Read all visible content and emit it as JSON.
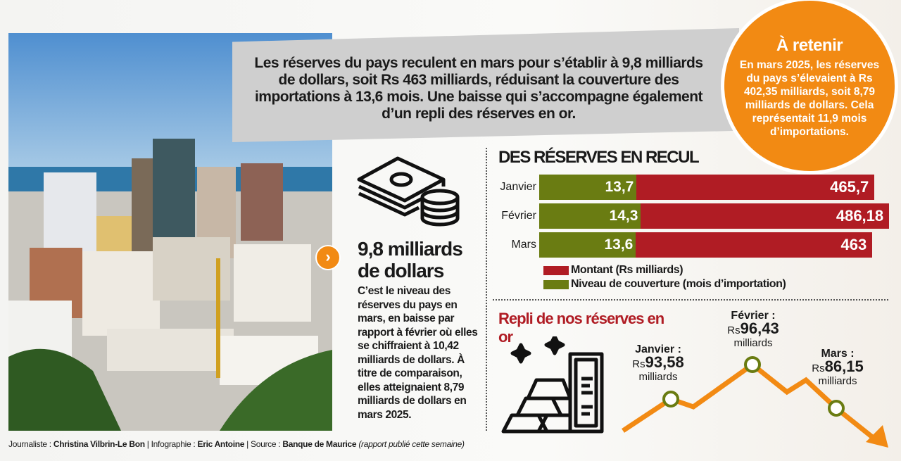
{
  "banner": {
    "text": "Les réserves du pays reculent en mars pour s’établir à 9,8 milliards de dollars, soit Rs 463 milliards, réduisant la couverture des importations à 13,6 mois. Une baisse qui s’accompagne également d’un repli des réserves en or."
  },
  "callout": {
    "title": "À retenir",
    "text": "En mars 2025, les réserves du pays s’élevaient à Rs 402,35 milliards, soit 8,79 milliards de dollars. Cela représentait 11,9 mois d’importations."
  },
  "highlight": {
    "value": "9,8 milliards de dollars",
    "text": "C’est le niveau des réserves du pays en mars, en baisse par rapport à février où elles se chiffraient à 10,42 milliards de dollars. À titre de comparaison, elles atteignaient 8,79 milliards de dollars en mars 2025.",
    "icon": "money-stack-icon"
  },
  "chart_data": [
    {
      "type": "bar",
      "title": "DES RÉSERVES EN RECUL",
      "categories": [
        "Janvier",
        "Février",
        "Mars"
      ],
      "series": [
        {
          "name": "Niveau de couverture (mois d’importation)",
          "values": [
            13.7,
            14.3,
            13.6
          ],
          "labels": [
            "13,7",
            "14,3",
            "13,6"
          ],
          "color": "#6a7c12"
        },
        {
          "name": "Montant (Rs milliards)",
          "values": [
            465.7,
            486.18,
            463
          ],
          "labels": [
            "465,7",
            "486,18",
            "463"
          ],
          "color": "#b01c24"
        }
      ],
      "orientation": "horizontal",
      "stacked": true
    },
    {
      "type": "line",
      "title": "Repli de nos réserves en or",
      "categories": [
        "Janvier",
        "Février",
        "Mars"
      ],
      "values": [
        93.58,
        96.43,
        86.15
      ],
      "labels": [
        {
          "month": "Janvier :",
          "prefix": "Rs",
          "value": "93,58",
          "unit": "milliards"
        },
        {
          "month": "Février :",
          "prefix": "Rs",
          "value": "96,43",
          "unit": "milliards"
        },
        {
          "month": "Mars :",
          "prefix": "Rs",
          "value": "86,15",
          "unit": "milliards"
        }
      ],
      "color": "#f28a13",
      "marker_color": "#6a7c12",
      "icon": "gold-bars-icon"
    }
  ],
  "credits": {
    "l1": "Journaliste : ",
    "n1": "Christina Vilbrin-Le Bon",
    "l2": " | Infographie : ",
    "n2": "Eric Antoine",
    "l3": " | Source : ",
    "n3": "Banque de Maurice",
    "note": " (rapport publié cette semaine)"
  }
}
